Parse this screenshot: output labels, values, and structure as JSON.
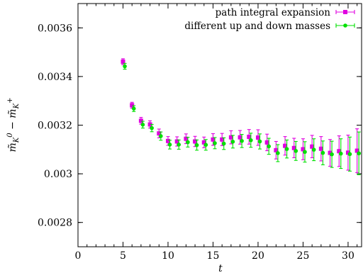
{
  "chart_data": {
    "type": "scatter",
    "xlabel": "t",
    "ylabel_parts": {
      "left_base": "m̃",
      "left_sub": "K",
      "left_sup": "0",
      "minus": " − ",
      "right_base": "m̃",
      "right_sub": "K",
      "right_sup": "+"
    },
    "xlim": [
      0,
      31.5
    ],
    "ylim": [
      0.0027,
      0.0037
    ],
    "xticks": [
      0,
      5,
      10,
      15,
      20,
      25,
      30
    ],
    "yticks": [
      0.0028,
      0.003,
      0.0032,
      0.0034,
      0.0036
    ],
    "ytick_labels": [
      "0.0028",
      "0.003",
      "0.0032",
      "0.0034",
      "0.0036"
    ],
    "grid": false,
    "legend_position": "top-right",
    "series": [
      {
        "name": "path integral expansion",
        "color": "#e000e0",
        "marker": "square",
        "x": [
          5,
          6,
          7,
          8,
          9,
          10,
          11,
          12,
          13,
          14,
          15,
          16,
          17,
          18,
          19,
          20,
          21,
          22,
          23,
          24,
          25,
          26,
          27,
          28,
          29,
          30,
          31
        ],
        "y": [
          0.003461,
          0.003282,
          0.003218,
          0.003203,
          0.003166,
          0.003135,
          0.003133,
          0.003144,
          0.003133,
          0.003129,
          0.003141,
          0.003141,
          0.00315,
          0.00315,
          0.003152,
          0.003149,
          0.003129,
          0.003097,
          0.003115,
          0.003106,
          0.003101,
          0.003112,
          0.003103,
          0.003086,
          0.003093,
          0.003087,
          0.003095
        ],
        "err": [
          1.2e-05,
          1.2e-05,
          1.4e-05,
          1.5e-05,
          1.8e-05,
          1.8e-05,
          1.9e-05,
          2e-05,
          2.1e-05,
          2.2e-05,
          2.4e-05,
          2.5e-05,
          2.7e-05,
          2.8e-05,
          3e-05,
          3.2e-05,
          3.4e-05,
          3.6e-05,
          3.8e-05,
          4e-05,
          4.3e-05,
          4.6e-05,
          5e-05,
          5.5e-05,
          6.3e-05,
          7.2e-05,
          9e-05
        ]
      },
      {
        "name": "different up and down masses",
        "color": "#00e000",
        "marker": "circle",
        "x": [
          5.2,
          6.2,
          7.2,
          8.2,
          9.2,
          10.2,
          11.2,
          12.2,
          13.2,
          14.2,
          15.2,
          16.2,
          17.2,
          18.2,
          19.2,
          20.2,
          21.2,
          22.2,
          23.2,
          24.2,
          25.2,
          26.2,
          27.2,
          28.2,
          29.2,
          30.2,
          31.2
        ],
        "y": [
          0.003442,
          0.003268,
          0.003202,
          0.003188,
          0.003155,
          0.00312,
          0.00312,
          0.00313,
          0.003118,
          0.003119,
          0.003126,
          0.003124,
          0.003132,
          0.003135,
          0.003138,
          0.003133,
          0.003113,
          0.003085,
          0.003102,
          0.003094,
          0.00309,
          0.003099,
          0.003086,
          0.00308,
          0.003083,
          0.003081,
          0.003084
        ],
        "err": [
          1.2e-05,
          1.2e-05,
          1.4e-05,
          1.5e-05,
          1.7e-05,
          1.8e-05,
          1.9e-05,
          2e-05,
          2.1e-05,
          2.2e-05,
          2.3e-05,
          2.4e-05,
          2.6e-05,
          2.7e-05,
          2.9e-05,
          3.1e-05,
          3.3e-05,
          3.5e-05,
          3.7e-05,
          3.9e-05,
          4.2e-05,
          4.5e-05,
          4.9e-05,
          5.4e-05,
          6.1e-05,
          7e-05,
          8.8e-05
        ]
      }
    ]
  }
}
